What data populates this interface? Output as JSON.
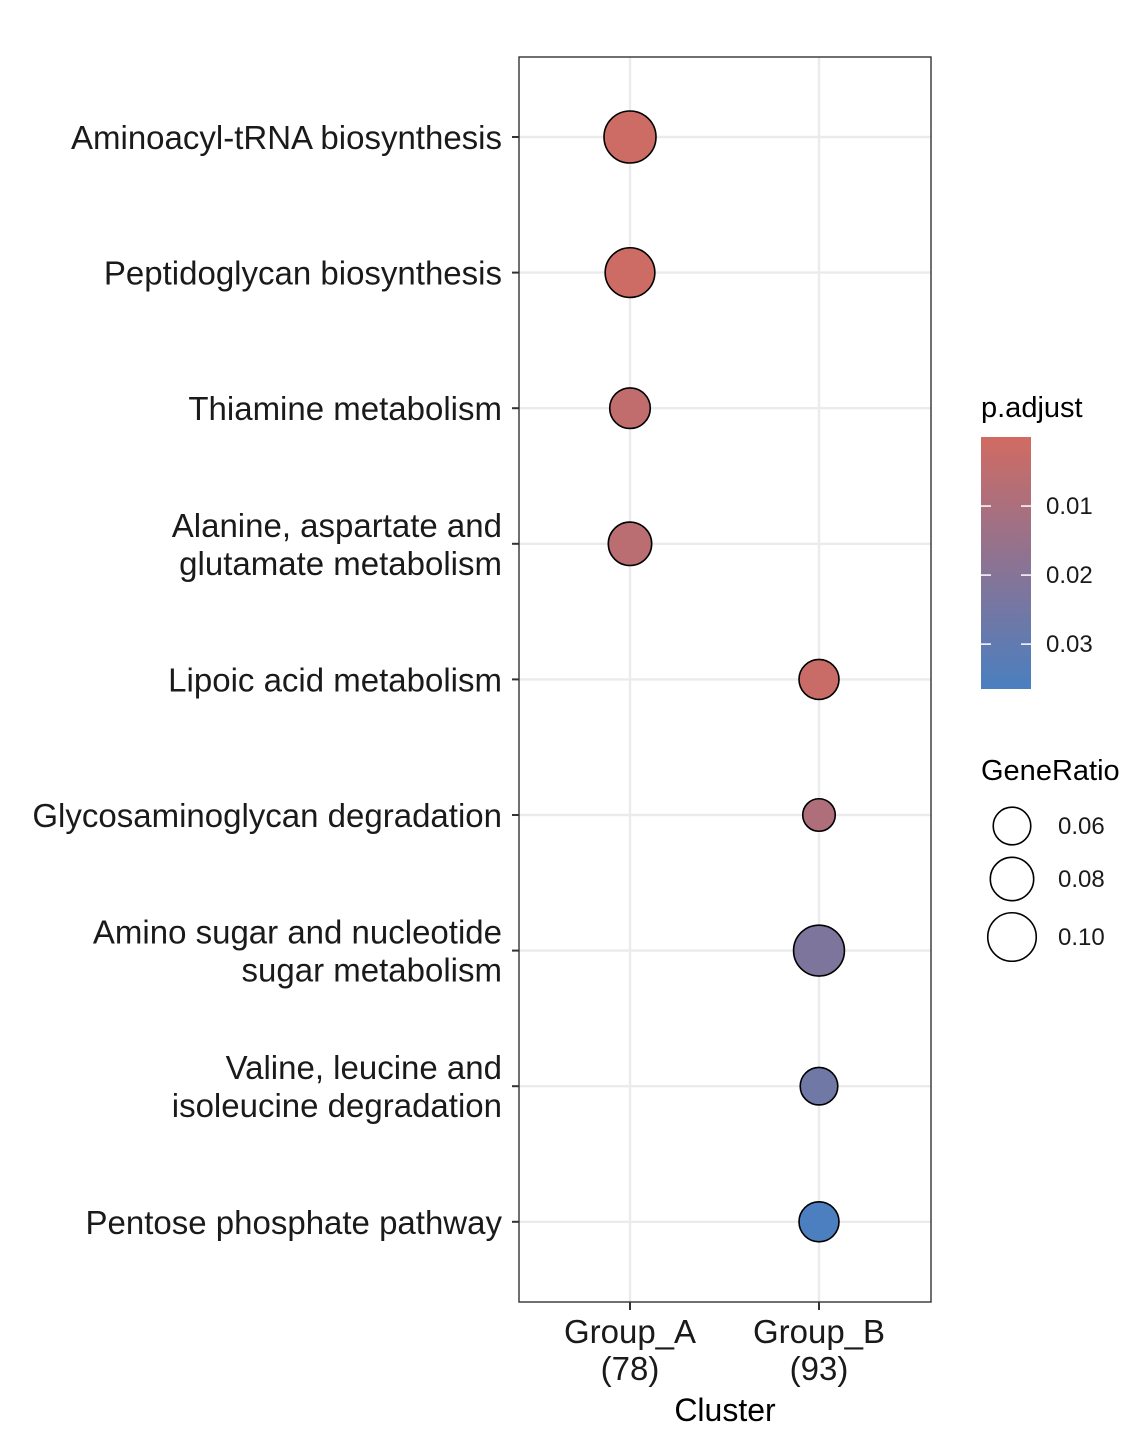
{
  "chart_data": {
    "type": "scatter",
    "subtype": "dotplot",
    "xlabel": "Cluster",
    "ylabel": "",
    "clusters": [
      {
        "id": "Group_A",
        "label": "Group_A",
        "count_label": "(78)"
      },
      {
        "id": "Group_B",
        "label": "Group_B",
        "count_label": "(93)"
      }
    ],
    "terms": [
      {
        "line1": "Aminoacyl-tRNA biosynthesis",
        "line2": ""
      },
      {
        "line1": "Peptidoglycan biosynthesis",
        "line2": ""
      },
      {
        "line1": "Thiamine metabolism",
        "line2": ""
      },
      {
        "line1": "Alanine, aspartate and",
        "line2": "glutamate metabolism"
      },
      {
        "line1": "Lipoic acid metabolism",
        "line2": ""
      },
      {
        "line1": "Glycosaminoglycan degradation",
        "line2": ""
      },
      {
        "line1": "Amino sugar and nucleotide",
        "line2": "sugar metabolism"
      },
      {
        "line1": "Valine, leucine and",
        "line2": "isoleucine degradation"
      },
      {
        "line1": "Pentose phosphate pathway",
        "line2": ""
      }
    ],
    "points": [
      {
        "term": 0,
        "cluster": 0,
        "gene_ratio": 0.115,
        "p_adjust": 0.001
      },
      {
        "term": 1,
        "cluster": 0,
        "gene_ratio": 0.105,
        "p_adjust": 0.001
      },
      {
        "term": 2,
        "cluster": 0,
        "gene_ratio": 0.07,
        "p_adjust": 0.004
      },
      {
        "term": 3,
        "cluster": 0,
        "gene_ratio": 0.08,
        "p_adjust": 0.006
      },
      {
        "term": 4,
        "cluster": 1,
        "gene_ratio": 0.068,
        "p_adjust": 0.002
      },
      {
        "term": 5,
        "cluster": 1,
        "gene_ratio": 0.045,
        "p_adjust": 0.009
      },
      {
        "term": 6,
        "cluster": 1,
        "gene_ratio": 0.11,
        "p_adjust": 0.022
      },
      {
        "term": 7,
        "cluster": 1,
        "gene_ratio": 0.06,
        "p_adjust": 0.026
      },
      {
        "term": 8,
        "cluster": 1,
        "gene_ratio": 0.068,
        "p_adjust": 0.036
      }
    ],
    "color_scale": {
      "title": "p.adjust",
      "domain": [
        0.0,
        0.0365
      ],
      "low_color": "#d16b62",
      "mid_color": "#8c7393",
      "high_color": "#4a7fc0",
      "ticks": [
        0.01,
        0.02,
        0.03
      ],
      "tick_labels": [
        "0.01",
        "0.02",
        "0.03"
      ]
    },
    "size_scale": {
      "title": "GeneRatio",
      "ticks": [
        0.06,
        0.08,
        0.1
      ],
      "tick_labels": [
        "0.06",
        "0.08",
        "0.10"
      ]
    },
    "grid": true,
    "legend_position": "right"
  }
}
